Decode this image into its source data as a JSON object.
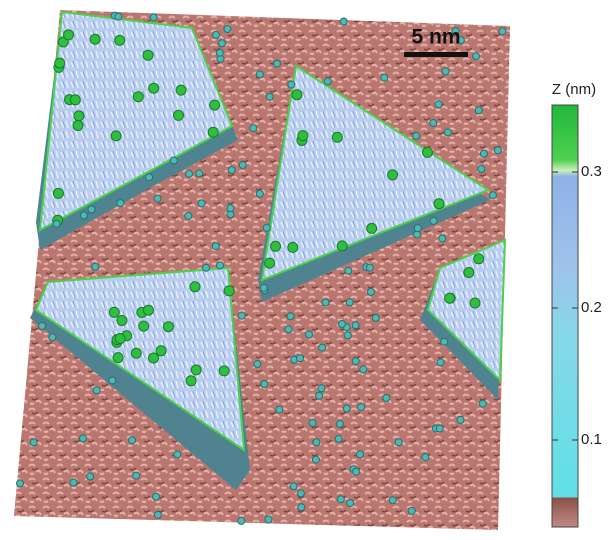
{
  "scale_bar": {
    "label": "5 nm"
  },
  "colorbar": {
    "title": "Z (nm)",
    "ticks": [
      0.3,
      0.2,
      0.1
    ]
  }
}
